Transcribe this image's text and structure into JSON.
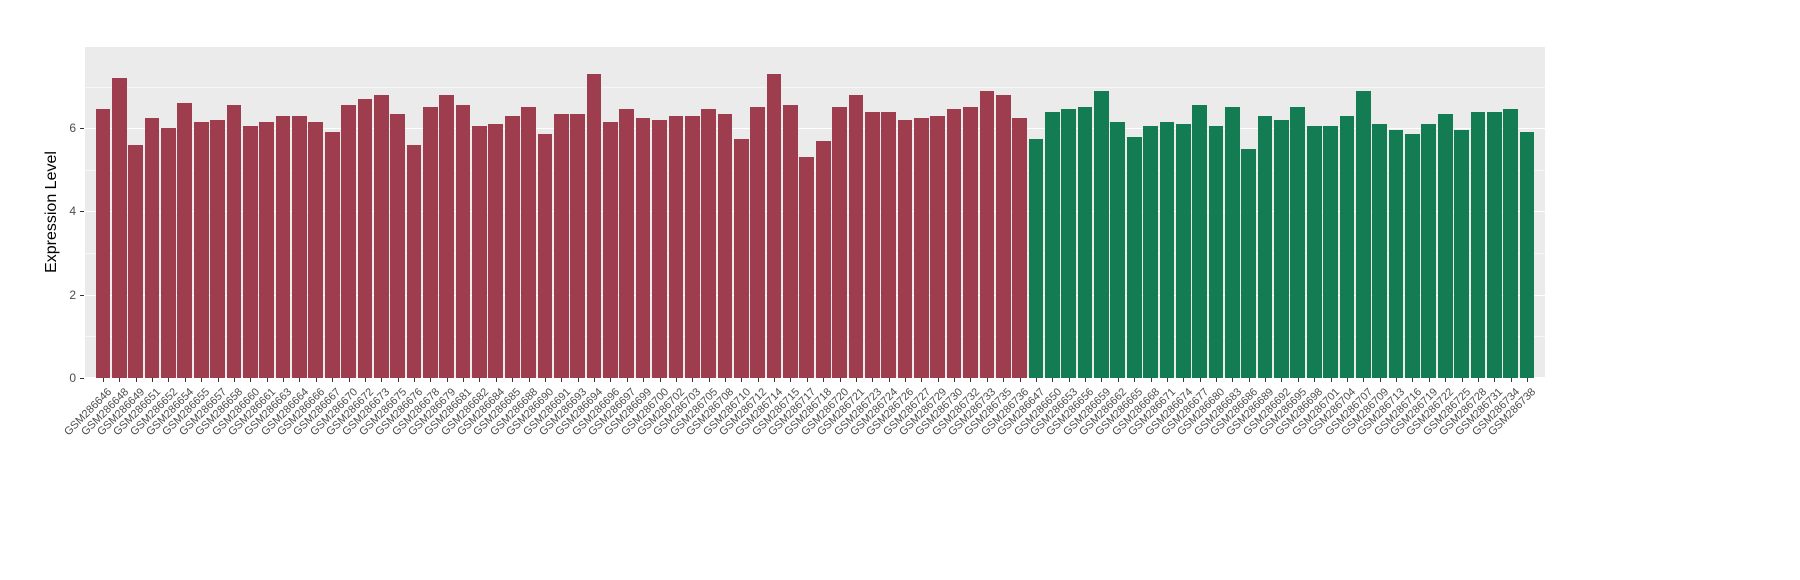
{
  "chart": {
    "panel_bg": "#EBEBEB",
    "grid_color": "#FFFFFF",
    "tick_label_color": "#4d4d4d",
    "axis_title_color": "#000000"
  },
  "chart_data": {
    "type": "bar",
    "title": "",
    "xlabel": "",
    "ylabel": "Expression Level",
    "ylim": [
      0,
      7.95
    ],
    "yticks": [
      0,
      2,
      4,
      6
    ],
    "yticks_minor": [
      1,
      3,
      5,
      7
    ],
    "grid": true,
    "legend_position": "none",
    "bar_width_fraction": 0.9,
    "groups": [
      {
        "name": "group1",
        "color": "#9E3D4E",
        "categories": [
          "GSM286646",
          "GSM286648",
          "GSM286649",
          "GSM286651",
          "GSM286652",
          "GSM286654",
          "GSM286655",
          "GSM286657",
          "GSM286658",
          "GSM286660",
          "GSM286661",
          "GSM286663",
          "GSM286664",
          "GSM286666",
          "GSM286667",
          "GSM286670",
          "GSM286672",
          "GSM286673",
          "GSM286675",
          "GSM286676",
          "GSM286678",
          "GSM286679",
          "GSM286681",
          "GSM286682",
          "GSM286684",
          "GSM286685",
          "GSM286688",
          "GSM286690",
          "GSM286691",
          "GSM286693",
          "GSM286694",
          "GSM286696",
          "GSM286697",
          "GSM286699",
          "GSM286700",
          "GSM286702",
          "GSM286703",
          "GSM286705",
          "GSM286708",
          "GSM286710",
          "GSM286712",
          "GSM286714",
          "GSM286715",
          "GSM286717",
          "GSM286718",
          "GSM286720",
          "GSM286721",
          "GSM286723",
          "GSM286724",
          "GSM286726",
          "GSM286727",
          "GSM286729",
          "GSM286730",
          "GSM286732",
          "GSM286733",
          "GSM286735",
          "GSM286736"
        ],
        "values": [
          6.45,
          7.2,
          5.6,
          6.25,
          6.0,
          6.6,
          6.15,
          6.2,
          6.55,
          6.05,
          6.15,
          6.3,
          6.3,
          6.15,
          5.9,
          6.55,
          6.7,
          6.8,
          6.35,
          5.6,
          6.5,
          6.8,
          6.55,
          6.05,
          6.1,
          6.3,
          6.5,
          5.85,
          6.35,
          6.35,
          7.3,
          6.15,
          6.45,
          6.25,
          6.2,
          6.3,
          6.3,
          6.45,
          6.35,
          5.75,
          6.5,
          7.3,
          6.55,
          5.3,
          5.7,
          6.5,
          6.8,
          6.4,
          6.4,
          6.2,
          6.25,
          6.3,
          6.45,
          6.5,
          6.9,
          6.8,
          6.25
        ]
      },
      {
        "name": "group2",
        "color": "#147C52",
        "categories": [
          "GSM286647",
          "GSM286650",
          "GSM286653",
          "GSM286656",
          "GSM286659",
          "GSM286662",
          "GSM286665",
          "GSM286668",
          "GSM286671",
          "GSM286674",
          "GSM286677",
          "GSM286680",
          "GSM286683",
          "GSM286686",
          "GSM286689",
          "GSM286692",
          "GSM286695",
          "GSM286698",
          "GSM286701",
          "GSM286704",
          "GSM286707",
          "GSM286709",
          "GSM286713",
          "GSM286716",
          "GSM286719",
          "GSM286722",
          "GSM286725",
          "GSM286728",
          "GSM286731",
          "GSM286734",
          "GSM286738"
        ],
        "values": [
          5.75,
          6.4,
          6.45,
          6.5,
          6.9,
          6.15,
          5.8,
          6.05,
          6.15,
          6.1,
          6.55,
          6.05,
          6.5,
          5.5,
          6.3,
          6.2,
          6.5,
          6.05,
          6.05,
          6.3,
          6.9,
          6.1,
          5.95,
          5.85,
          6.1,
          6.35,
          5.95,
          6.4,
          6.4,
          6.45,
          5.9
        ]
      }
    ]
  }
}
